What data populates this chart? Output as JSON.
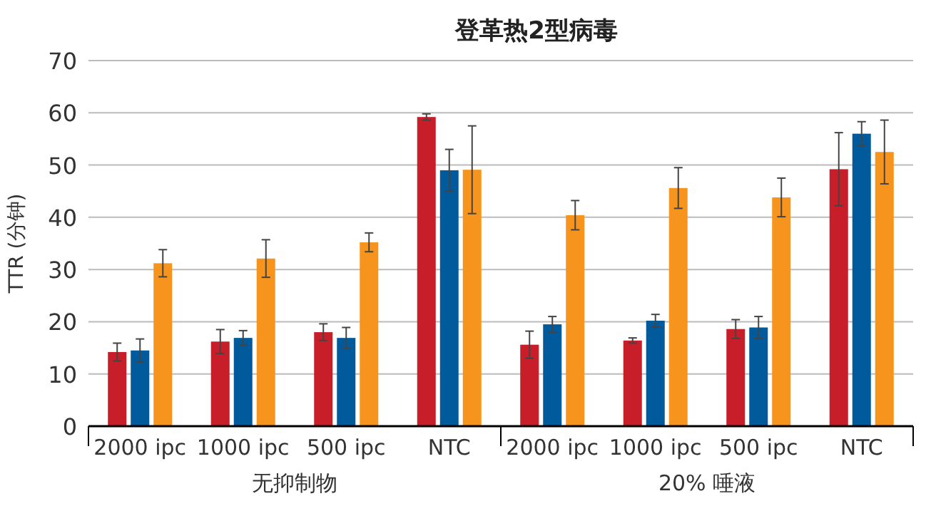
{
  "chart_data": {
    "type": "bar",
    "title": "登革热2型病毒",
    "ylabel": "TTR (分钟)",
    "categories": [
      "2000 ipc",
      "1000 ipc",
      "500 ipc",
      "NTC",
      "2000 ipc",
      "1000 ipc",
      "500 ipc",
      "NTC"
    ],
    "series": [
      {
        "color": "#c81e2a",
        "values": [
          14.2,
          16.2,
          18,
          59.2,
          15.6,
          16.4,
          18.6,
          49.2
        ],
        "errors": [
          1.7,
          2.3,
          1.6,
          0.6,
          2.6,
          0.5,
          1.8,
          7
        ]
      },
      {
        "color": "#005a9c",
        "values": [
          14.5,
          16.9,
          16.9,
          49,
          19.5,
          20.2,
          18.9,
          56
        ],
        "errors": [
          2.2,
          1.4,
          2,
          4,
          1.5,
          1.2,
          2.1,
          2.3
        ]
      },
      {
        "color": "#f7941d",
        "values": [
          31.2,
          32.1,
          35.2,
          49.1,
          40.4,
          45.6,
          43.8,
          52.5
        ],
        "errors": [
          2.6,
          3.6,
          1.8,
          8.4,
          2.8,
          3.9,
          3.7,
          6.1
        ]
      }
    ],
    "ylim": [
      0,
      70
    ],
    "yticks": [
      0,
      10,
      20,
      30,
      40,
      50,
      60,
      70
    ],
    "grid": "y",
    "annotations": [
      "无抑制物",
      "20% 唾液"
    ]
  }
}
